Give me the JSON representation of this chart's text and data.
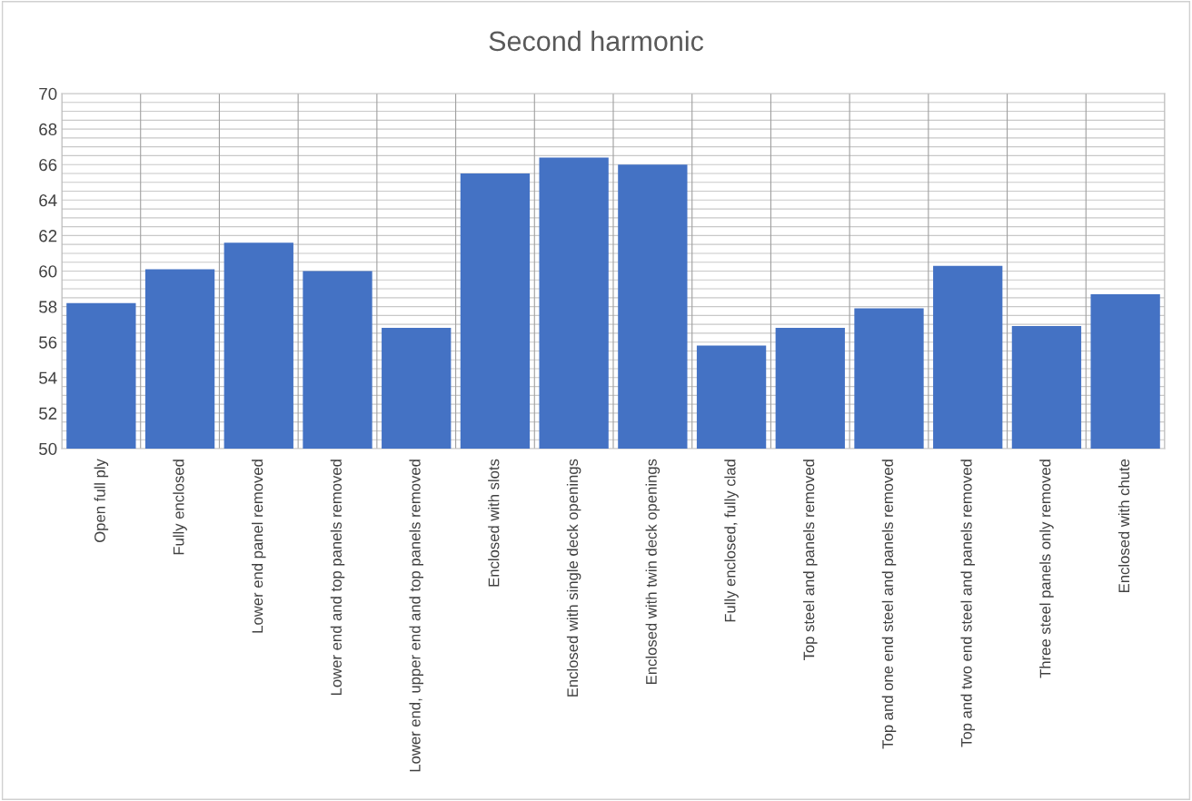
{
  "chart_data": {
    "type": "bar",
    "title": "Second harmonic",
    "categories": [
      "Open full ply",
      "Fully enclosed",
      "Lower end panel removed",
      "Lower end and top panels removed",
      "Lower end, upper end and top panels removed",
      "Enclosed with slots",
      "Enclosed with single deck openings",
      "Enclosed with twin deck openings",
      "Fully enclosed, fully clad",
      "Top steel and panels removed",
      "Top and one end steel and panels removed",
      "Top and two end steel and panels removed",
      "Three steel panels only removed",
      "Enclosed with chute"
    ],
    "values": [
      58.2,
      60.1,
      61.6,
      60.0,
      56.8,
      65.5,
      66.4,
      66.0,
      55.8,
      56.8,
      57.9,
      60.3,
      56.9,
      58.7
    ],
    "color": "#4472c4",
    "ylim": [
      50,
      70
    ],
    "yticks": [
      50,
      {
        "value": 50.5,
        "label": null
      },
      {
        "value": 51,
        "label": null
      },
      {
        "value": 51.5,
        "label": null
      },
      52,
      {
        "value": 52.5,
        "label": null
      },
      {
        "value": 53,
        "label": null
      },
      {
        "value": 53.5,
        "label": null
      },
      54,
      {
        "value": 54.5,
        "label": null
      },
      {
        "value": 55,
        "label": null
      },
      {
        "value": 55.5,
        "label": null
      },
      56,
      {
        "value": 56.5,
        "label": null
      },
      {
        "value": 57,
        "label": null
      },
      {
        "value": 57.5,
        "label": null
      },
      58,
      {
        "value": 58.5,
        "label": null
      },
      {
        "value": 59,
        "label": null
      },
      {
        "value": 59.5,
        "label": null
      },
      60,
      {
        "value": 60.5,
        "label": null
      },
      {
        "value": 61,
        "label": null
      },
      {
        "value": 61.5,
        "label": null
      },
      62,
      {
        "value": 62.5,
        "label": null
      },
      {
        "value": 63,
        "label": null
      },
      {
        "value": 63.5,
        "label": null
      },
      64,
      {
        "value": 64.5,
        "label": null
      },
      {
        "value": 65,
        "label": null
      },
      {
        "value": 65.5,
        "label": null
      },
      66,
      {
        "value": 66.5,
        "label": null
      },
      {
        "value": 67,
        "label": null
      },
      {
        "value": 67.5,
        "label": null
      },
      68,
      {
        "value": 68.5,
        "label": null
      },
      {
        "value": 69,
        "label": null
      },
      {
        "value": 69.5,
        "label": null
      },
      70
    ],
    "grid": true
  }
}
